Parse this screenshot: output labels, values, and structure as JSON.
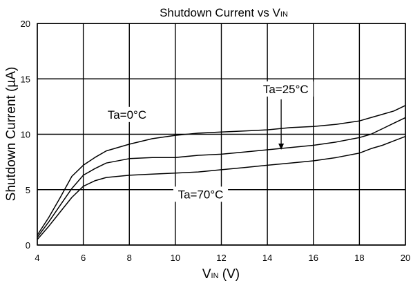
{
  "chart_data": {
    "type": "line",
    "title": {
      "main": "Shutdown Current vs V",
      "sub": "IN"
    },
    "xlabel": {
      "main": "V",
      "sub": "IN",
      "unit": " (V)"
    },
    "ylabel": "Shutdown Current (µA)",
    "xlim": [
      4,
      20
    ],
    "ylim": [
      0,
      20
    ],
    "xticks": [
      4,
      6,
      8,
      10,
      12,
      14,
      16,
      18,
      20
    ],
    "yticks": [
      0,
      5,
      10,
      15,
      20
    ],
    "xtick_labels": [
      "4",
      "6",
      "8",
      "10",
      "12",
      "14",
      "16",
      "18",
      "20"
    ],
    "ytick_labels": [
      "0",
      "5",
      "10",
      "15",
      "20"
    ],
    "grid": true,
    "series": [
      {
        "name": "Ta=0°C",
        "x": [
          4,
          4.5,
          5,
          5.5,
          6,
          6.5,
          7,
          8,
          9,
          10,
          11,
          12,
          13,
          14,
          15,
          16,
          17,
          18,
          18.5,
          19,
          19.5,
          20
        ],
        "y": [
          0.9,
          2.5,
          4.3,
          6.2,
          7.2,
          7.9,
          8.5,
          9.1,
          9.6,
          9.9,
          10.1,
          10.2,
          10.3,
          10.4,
          10.6,
          10.7,
          10.9,
          11.2,
          11.5,
          11.8,
          12.1,
          12.6
        ]
      },
      {
        "name": "Ta=25°C",
        "x": [
          4,
          4.5,
          5,
          5.5,
          6,
          6.5,
          7,
          8,
          9,
          10,
          11,
          12,
          13,
          14,
          15,
          16,
          17,
          18,
          18.5,
          19,
          19.5,
          20
        ],
        "y": [
          0.7,
          2.1,
          3.6,
          5.1,
          6.3,
          6.9,
          7.4,
          7.8,
          7.9,
          7.9,
          8.1,
          8.2,
          8.4,
          8.6,
          8.8,
          9.0,
          9.3,
          9.7,
          10.0,
          10.5,
          11.0,
          11.5
        ]
      },
      {
        "name": "Ta=70°C",
        "x": [
          4,
          4.5,
          5,
          5.5,
          6,
          6.5,
          7,
          8,
          9,
          10,
          11,
          12,
          13,
          14,
          15,
          16,
          17,
          18,
          18.5,
          19,
          19.5,
          20
        ],
        "y": [
          0.5,
          1.7,
          3.0,
          4.3,
          5.3,
          5.8,
          6.1,
          6.3,
          6.4,
          6.5,
          6.6,
          6.8,
          7.0,
          7.2,
          7.4,
          7.6,
          7.9,
          8.3,
          8.7,
          9.0,
          9.4,
          9.8
        ]
      }
    ],
    "annotations": [
      {
        "text": "Ta=0°C",
        "x": 7.9,
        "y": 11.6
      },
      {
        "text": "Ta=25°C",
        "x": 14.8,
        "y": 13.9,
        "arrow_to": [
          14.6,
          8.6
        ]
      },
      {
        "text": "Ta=70°C",
        "x": 11.1,
        "y": 4.4
      }
    ]
  }
}
